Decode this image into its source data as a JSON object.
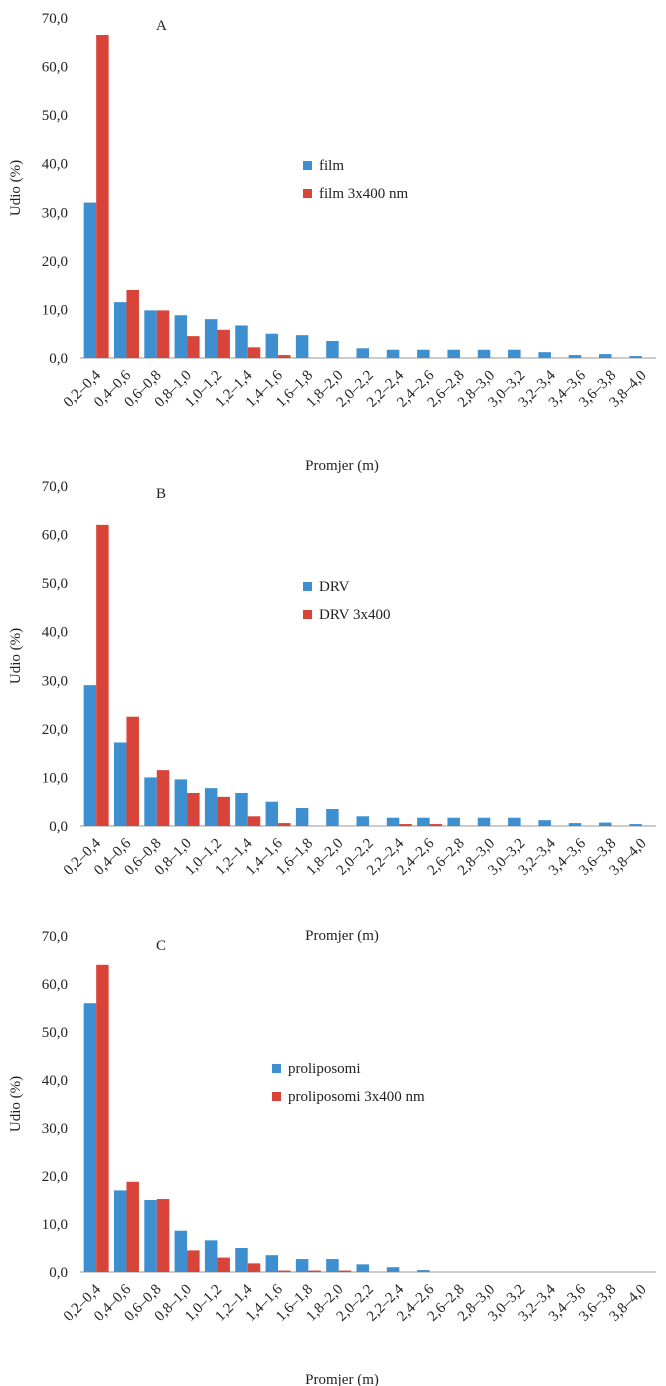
{
  "chart_data": [
    {
      "type": "bar",
      "panel_label": "A",
      "xlabel": "Promjer (m)",
      "ylabel": "Udio (%)",
      "ylim": [
        0,
        70
      ],
      "y_ticks": [
        "0,0",
        "10,0",
        "20,0",
        "30,0",
        "40,0",
        "50,0",
        "60,0",
        "70,0"
      ],
      "categories": [
        "0,2–0,4",
        "0,4–0,6",
        "0,6–0,8",
        "0,8–1,0",
        "1,0–1,2",
        "1,2–1,4",
        "1,4–1,6",
        "1,6–1,8",
        "1,8–2,0",
        "2,0–2,2",
        "2,2–2,4",
        "2,4–2,6",
        "2,6–2,8",
        "2,8–3,0",
        "3,0–3,2",
        "3,2–3,4",
        "3,4–3,6",
        "3,6–3,8",
        "3,8–4,0"
      ],
      "legend_position": "center-right",
      "series": [
        {
          "name": "film",
          "color": "#3d8fd0",
          "values": [
            32.0,
            11.5,
            9.8,
            8.8,
            8.0,
            6.7,
            5.0,
            4.7,
            3.5,
            2.0,
            1.7,
            1.7,
            1.7,
            1.7,
            1.7,
            1.2,
            0.6,
            0.8,
            0.4
          ]
        },
        {
          "name": "film 3x400 nm",
          "color": "#d9443a",
          "values": [
            66.5,
            14.0,
            9.8,
            4.5,
            5.8,
            2.2,
            0.6,
            0,
            0,
            0,
            0,
            0,
            0,
            0,
            0,
            0,
            0,
            0,
            0
          ]
        }
      ]
    },
    {
      "type": "bar",
      "panel_label": "B",
      "xlabel": "Promjer (m)",
      "ylabel": "Udio (%)",
      "ylim": [
        0,
        70
      ],
      "y_ticks": [
        "0,0",
        "10,0",
        "20,0",
        "30,0",
        "40,0",
        "50,0",
        "60,0",
        "70,0"
      ],
      "categories": [
        "0,2–0,4",
        "0,4–0,6",
        "0,6–0,8",
        "0,8–1,0",
        "1,0–1,2",
        "1,2–1,4",
        "1,4–1,6",
        "1,6–1,8",
        "1,8–2,0",
        "2,0–2,2",
        "2,2–2,4",
        "2,4–2,6",
        "2,6–2,8",
        "2,8–3,0",
        "3,0–3,2",
        "3,2–3,4",
        "3,4–3,6",
        "3,6–3,8",
        "3,8–4,0"
      ],
      "legend_position": "center-right",
      "series": [
        {
          "name": "DRV",
          "color": "#3d8fd0",
          "values": [
            29.0,
            17.2,
            10.0,
            9.6,
            7.8,
            6.8,
            5.0,
            3.7,
            3.5,
            2.0,
            1.7,
            1.7,
            1.7,
            1.7,
            1.7,
            1.2,
            0.6,
            0.7,
            0.4
          ]
        },
        {
          "name": "DRV 3x400",
          "color": "#d9443a",
          "values": [
            62.0,
            22.5,
            11.5,
            6.8,
            6.0,
            2.0,
            0.6,
            0,
            0,
            0,
            0.4,
            0.4,
            0,
            0,
            0,
            0,
            0,
            0,
            0
          ]
        }
      ]
    },
    {
      "type": "bar",
      "panel_label": "C",
      "xlabel": "Promjer (m)",
      "ylabel": "Udio (%)",
      "ylim": [
        0,
        70
      ],
      "y_ticks": [
        "0,0",
        "10,0",
        "20,0",
        "30,0",
        "40,0",
        "50,0",
        "60,0",
        "70,0"
      ],
      "categories": [
        "0,2–0,4",
        "0,4–0,6",
        "0,6–0,8",
        "0,8–1,0",
        "1,0–1,2",
        "1,2–1,4",
        "1,4–1,6",
        "1,6–1,8",
        "1,8–2,0",
        "2,0–2,2",
        "2,2–2,4",
        "2,4–2,6",
        "2,6–2,8",
        "2,8–3,0",
        "3,0–3,2",
        "3,2–3,4",
        "3,4–3,6",
        "3,6–3,8",
        "3,8–4,0"
      ],
      "legend_position": "center-right",
      "series": [
        {
          "name": "proliposomi",
          "color": "#3d8fd0",
          "values": [
            56.0,
            17.0,
            15.0,
            8.6,
            6.6,
            5.0,
            3.5,
            2.7,
            2.7,
            1.6,
            1.0,
            0.4,
            0,
            0,
            0,
            0,
            0,
            0,
            0
          ]
        },
        {
          "name": "proliposomi 3x400 nm",
          "color": "#d9443a",
          "values": [
            64.0,
            18.8,
            15.2,
            4.5,
            3.0,
            1.8,
            0.3,
            0.3,
            0.3,
            0,
            0,
            0,
            0,
            0,
            0,
            0,
            0,
            0,
            0
          ]
        }
      ]
    }
  ]
}
